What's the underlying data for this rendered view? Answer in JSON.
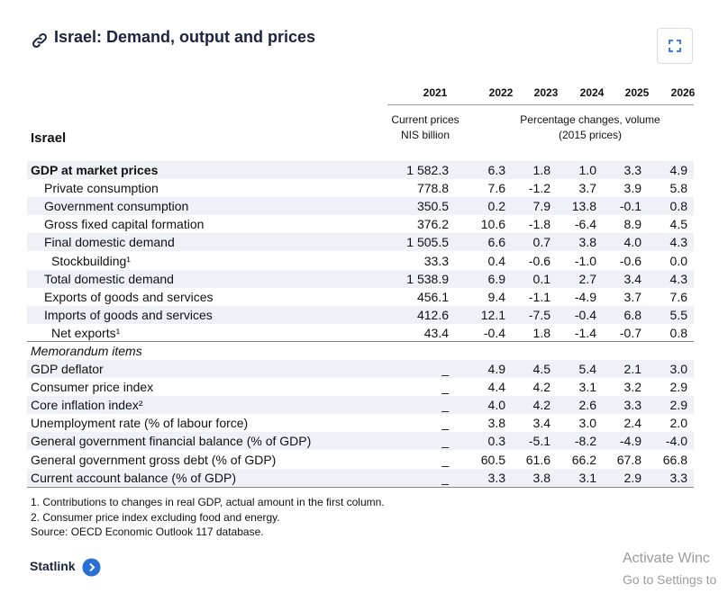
{
  "header": {
    "title": "Israel: Demand, output and prices"
  },
  "table": {
    "columns": [
      "2021",
      "2022",
      "2023",
      "2024",
      "2025",
      "2026"
    ],
    "subheaders": [
      "Current prices",
      "NIS billion",
      "Percentage changes, volume",
      "(2015 prices)"
    ],
    "stub_header": "Israel",
    "rows": [
      [
        "GDP at market prices",
        "1 582.3",
        "6.3",
        "1.8",
        "1.0",
        "3.3",
        "4.9"
      ],
      [
        "Private consumption",
        "778.8",
        "7.6",
        "-1.2",
        "3.7",
        "3.9",
        "5.8"
      ],
      [
        "Government consumption",
        "350.5",
        "0.2",
        "7.9",
        "13.8",
        "-0.1",
        "0.8"
      ],
      [
        "Gross fixed capital formation",
        "376.2",
        "10.6",
        "-1.8",
        "-6.4",
        "8.9",
        "4.5"
      ],
      [
        "Final domestic demand",
        "1 505.5",
        "6.6",
        "0.7",
        "3.8",
        "4.0",
        "4.3"
      ],
      [
        "Stockbuilding¹",
        "33.3",
        "0.4",
        "-0.6",
        "-1.0",
        "-0.6",
        "0.0"
      ],
      [
        "Total domestic demand",
        "1 538.9",
        "6.9",
        "0.1",
        "2.7",
        "3.4",
        "4.3"
      ],
      [
        "Exports of goods and services",
        "456.1",
        "9.4",
        "-1.1",
        "-4.9",
        "3.7",
        "7.6"
      ],
      [
        "Imports of goods and services",
        "412.6",
        "12.1",
        "-7.5",
        "-0.4",
        "6.8",
        "5.5"
      ],
      [
        "Net exports¹",
        "43.4",
        "-0.4",
        "1.8",
        "-1.4",
        "-0.7",
        "0.8"
      ]
    ],
    "memorandum_label": "Memorandum items",
    "memo_rows": [
      [
        "GDP deflator",
        "_",
        "4.9",
        "4.5",
        "5.4",
        "2.1",
        "3.0"
      ],
      [
        "Consumer price index",
        "_",
        "4.4",
        "4.2",
        "3.1",
        "3.2",
        "2.9"
      ],
      [
        "Core inflation index²",
        "_",
        "4.0",
        "4.2",
        "2.6",
        "3.3",
        "2.9"
      ],
      [
        "Unemployment rate (% of labour force)",
        "_",
        "3.8",
        "3.4",
        "3.0",
        "2.4",
        "2.0"
      ],
      [
        "General government financial balance (% of GDP)",
        "_",
        "0.3",
        "-5.1",
        "-8.2",
        "-4.9",
        "-4.0"
      ],
      [
        "General government gross debt (% of GDP)",
        "_",
        "60.5",
        "61.6",
        "66.2",
        "67.8",
        "66.8"
      ],
      [
        "Current account balance (% of GDP)",
        "_",
        "3.3",
        "3.8",
        "3.1",
        "2.9",
        "3.3"
      ]
    ]
  },
  "footnotes": [
    "1. Contributions to changes in real GDP, actual amount in the first column.",
    "2. Consumer price index excluding food and energy.",
    "Source: OECD Economic Outlook 117 database."
  ],
  "statlink": "Statlink",
  "watermark": [
    "Activate Winc",
    "Go to Settings to"
  ]
}
